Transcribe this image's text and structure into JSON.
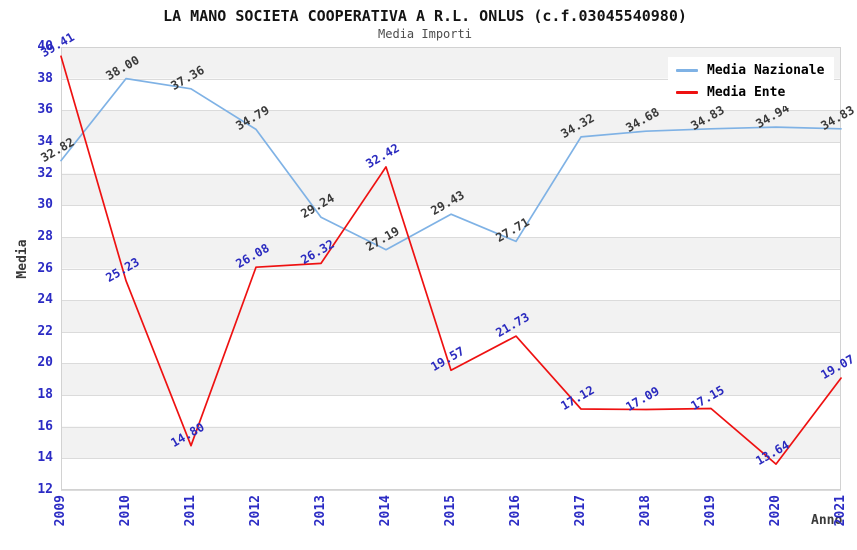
{
  "header": {
    "title": "LA MANO SOCIETA COOPERATIVA A R.L. ONLUS (c.f.03045540980)",
    "subtitle": "Media Importi"
  },
  "chart_data": {
    "type": "line",
    "x": [
      2009,
      2010,
      2011,
      2012,
      2013,
      2014,
      2015,
      2016,
      2017,
      2018,
      2019,
      2020,
      2021
    ],
    "series": [
      {
        "name": "Media Nazionale",
        "color": "#7FB2E5",
        "label_color": "#3A3A3A",
        "values": [
          32.82,
          38.0,
          37.36,
          34.79,
          29.24,
          27.19,
          29.43,
          27.71,
          34.32,
          34.68,
          34.83,
          34.94,
          34.83
        ]
      },
      {
        "name": "Media Ente",
        "color": "#EE1111",
        "label_color": "#2A2ABF",
        "values": [
          39.41,
          25.23,
          14.8,
          26.08,
          26.32,
          32.42,
          19.57,
          21.73,
          17.12,
          17.09,
          17.15,
          13.64,
          19.07
        ]
      }
    ],
    "xlabel": "Anno",
    "ylabel": "Media",
    "ylim": [
      12,
      40
    ],
    "y_ticks": [
      12,
      14,
      16,
      18,
      20,
      22,
      24,
      26,
      28,
      30,
      32,
      34,
      36,
      38,
      40
    ],
    "grid": "horizontal gridlines every 2 units with alternating gray/white bands",
    "legend_position": "top-right",
    "point_label_decimals": 2,
    "styles": {
      "band_color": "#F2F2F2",
      "grid_color": "#DBDBDB",
      "plot_border_color": "#D2D2D2",
      "tick_label_color": "#2B2BC4",
      "axis_title_color": "#3A3A3A",
      "title_color": "#141414",
      "subtitle_color": "#4D4D4D",
      "background_color": "#FFFFFF"
    }
  }
}
